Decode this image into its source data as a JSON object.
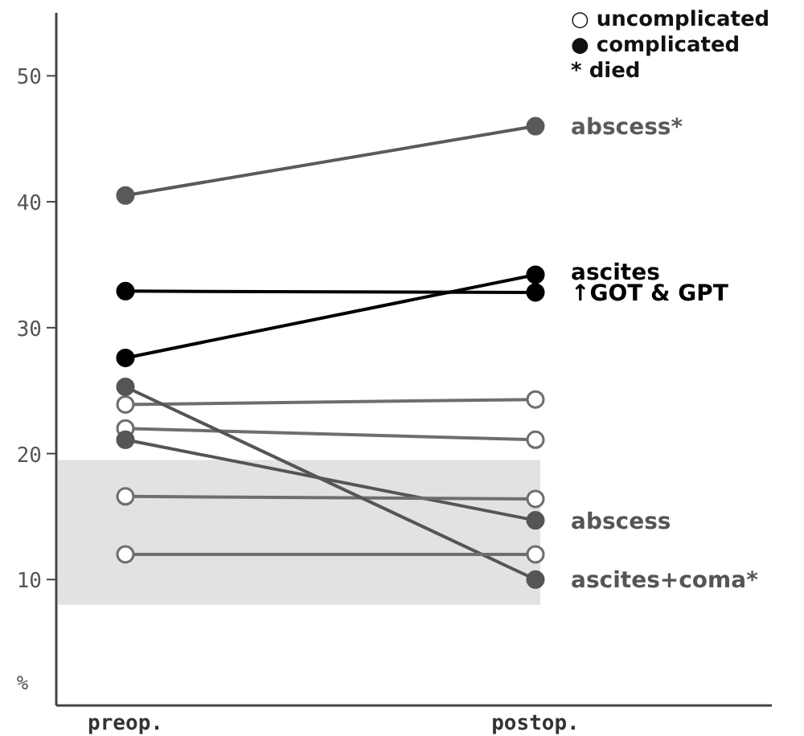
{
  "chart_data": {
    "type": "line",
    "categories": [
      "preop.",
      "postop."
    ],
    "ylabel": "%",
    "ylim": [
      0,
      55
    ],
    "yticks": [
      10,
      20,
      30,
      40,
      50
    ],
    "marker": "circle",
    "line_style": "solid",
    "series": [
      {
        "name": "abscess*",
        "color": "#5a5a5a",
        "values": [
          40.5,
          46.0
        ]
      },
      {
        "name": "ascites",
        "color": "#000000",
        "values": [
          27.6,
          34.2
        ]
      },
      {
        "name": "↑GOT & GPT",
        "color": "#000000",
        "values": [
          32.9,
          32.8
        ]
      },
      {
        "color": "#6e6e6e",
        "values": [
          23.9,
          24.3
        ]
      },
      {
        "color": "#6e6e6e",
        "values": [
          22.0,
          21.1
        ]
      },
      {
        "name": "abscess",
        "color": "#555555",
        "values": [
          21.1,
          14.7
        ]
      },
      {
        "color": "#6e6e6e",
        "values": [
          16.6,
          16.4
        ]
      },
      {
        "name": "ascites+coma*",
        "color": "#555555",
        "values": [
          25.3,
          10.0
        ]
      },
      {
        "color": "#6e6e6e",
        "values": [
          12.0,
          12.0
        ]
      }
    ],
    "bands": [
      {
        "axis": "y",
        "from": 8,
        "to": 19.5,
        "color": "#e2e2e2"
      }
    ],
    "annotations": [
      "○ uncomplicated",
      "● complicated",
      "* died"
    ]
  }
}
